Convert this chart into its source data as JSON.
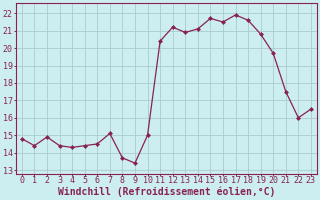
{
  "x": [
    0,
    1,
    2,
    3,
    4,
    5,
    6,
    7,
    8,
    9,
    10,
    11,
    12,
    13,
    14,
    15,
    16,
    17,
    18,
    19,
    20,
    21,
    22,
    23
  ],
  "y": [
    14.8,
    14.4,
    14.9,
    14.4,
    14.3,
    14.4,
    14.5,
    15.1,
    13.7,
    13.4,
    15.0,
    20.4,
    21.2,
    20.9,
    21.1,
    21.7,
    21.5,
    21.9,
    21.6,
    20.8,
    19.7,
    17.5,
    16.0,
    16.5
  ],
  "line_color": "#882255",
  "marker": "D",
  "marker_size": 2,
  "bg_color": "#cceef0",
  "grid_color": "#aacccc",
  "xlabel": "Windchill (Refroidissement éolien,°C)",
  "ylabel_ticks": [
    13,
    14,
    15,
    16,
    17,
    18,
    19,
    20,
    21,
    22
  ],
  "ylim": [
    12.8,
    22.6
  ],
  "xlim": [
    -0.5,
    23.5
  ],
  "xticks": [
    0,
    1,
    2,
    3,
    4,
    5,
    6,
    7,
    8,
    9,
    10,
    11,
    12,
    13,
    14,
    15,
    16,
    17,
    18,
    19,
    20,
    21,
    22,
    23
  ],
  "tick_fontsize": 6.0,
  "xlabel_fontsize": 7.0
}
